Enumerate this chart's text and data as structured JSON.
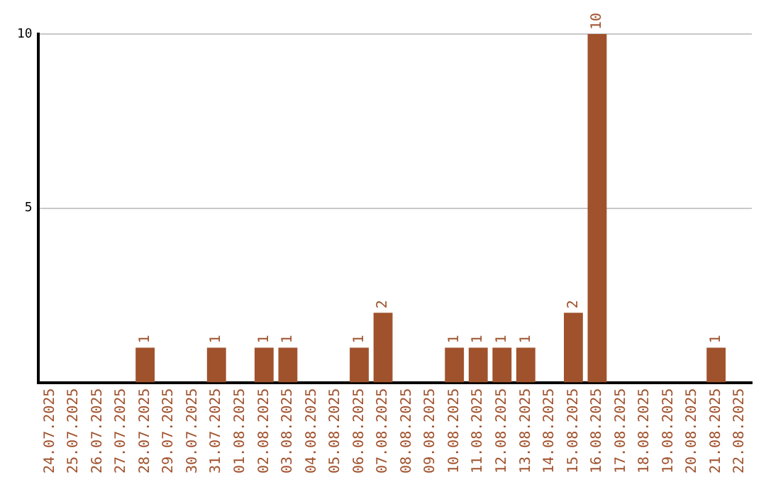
{
  "chart_data": {
    "type": "bar",
    "categories": [
      "24.07.2025",
      "25.07.2025",
      "26.07.2025",
      "27.07.2025",
      "28.07.2025",
      "29.07.2025",
      "30.07.2025",
      "31.07.2025",
      "01.08.2025",
      "02.08.2025",
      "03.08.2025",
      "04.08.2025",
      "05.08.2025",
      "06.08.2025",
      "07.08.2025",
      "08.08.2025",
      "09.08.2025",
      "10.08.2025",
      "11.08.2025",
      "12.08.2025",
      "13.08.2025",
      "14.08.2025",
      "15.08.2025",
      "16.08.2025",
      "17.08.2025",
      "18.08.2025",
      "19.08.2025",
      "20.08.2025",
      "21.08.2025",
      "22.08.2025"
    ],
    "values": [
      0,
      0,
      0,
      0,
      1,
      0,
      0,
      1,
      0,
      1,
      1,
      0,
      0,
      1,
      2,
      0,
      0,
      1,
      1,
      1,
      1,
      0,
      2,
      10,
      0,
      0,
      0,
      0,
      1,
      0
    ],
    "value_labels": [
      null,
      null,
      null,
      null,
      "1",
      null,
      null,
      "1",
      null,
      "1",
      "1",
      null,
      null,
      "1",
      "2",
      null,
      null,
      "1",
      "1",
      "1",
      "1",
      null,
      "2",
      "10",
      null,
      null,
      null,
      null,
      "1",
      null
    ],
    "color": "#a0522d",
    "ylim": [
      0,
      10
    ],
    "yticks": [
      5,
      10
    ],
    "grid": "y",
    "legend": false
  }
}
